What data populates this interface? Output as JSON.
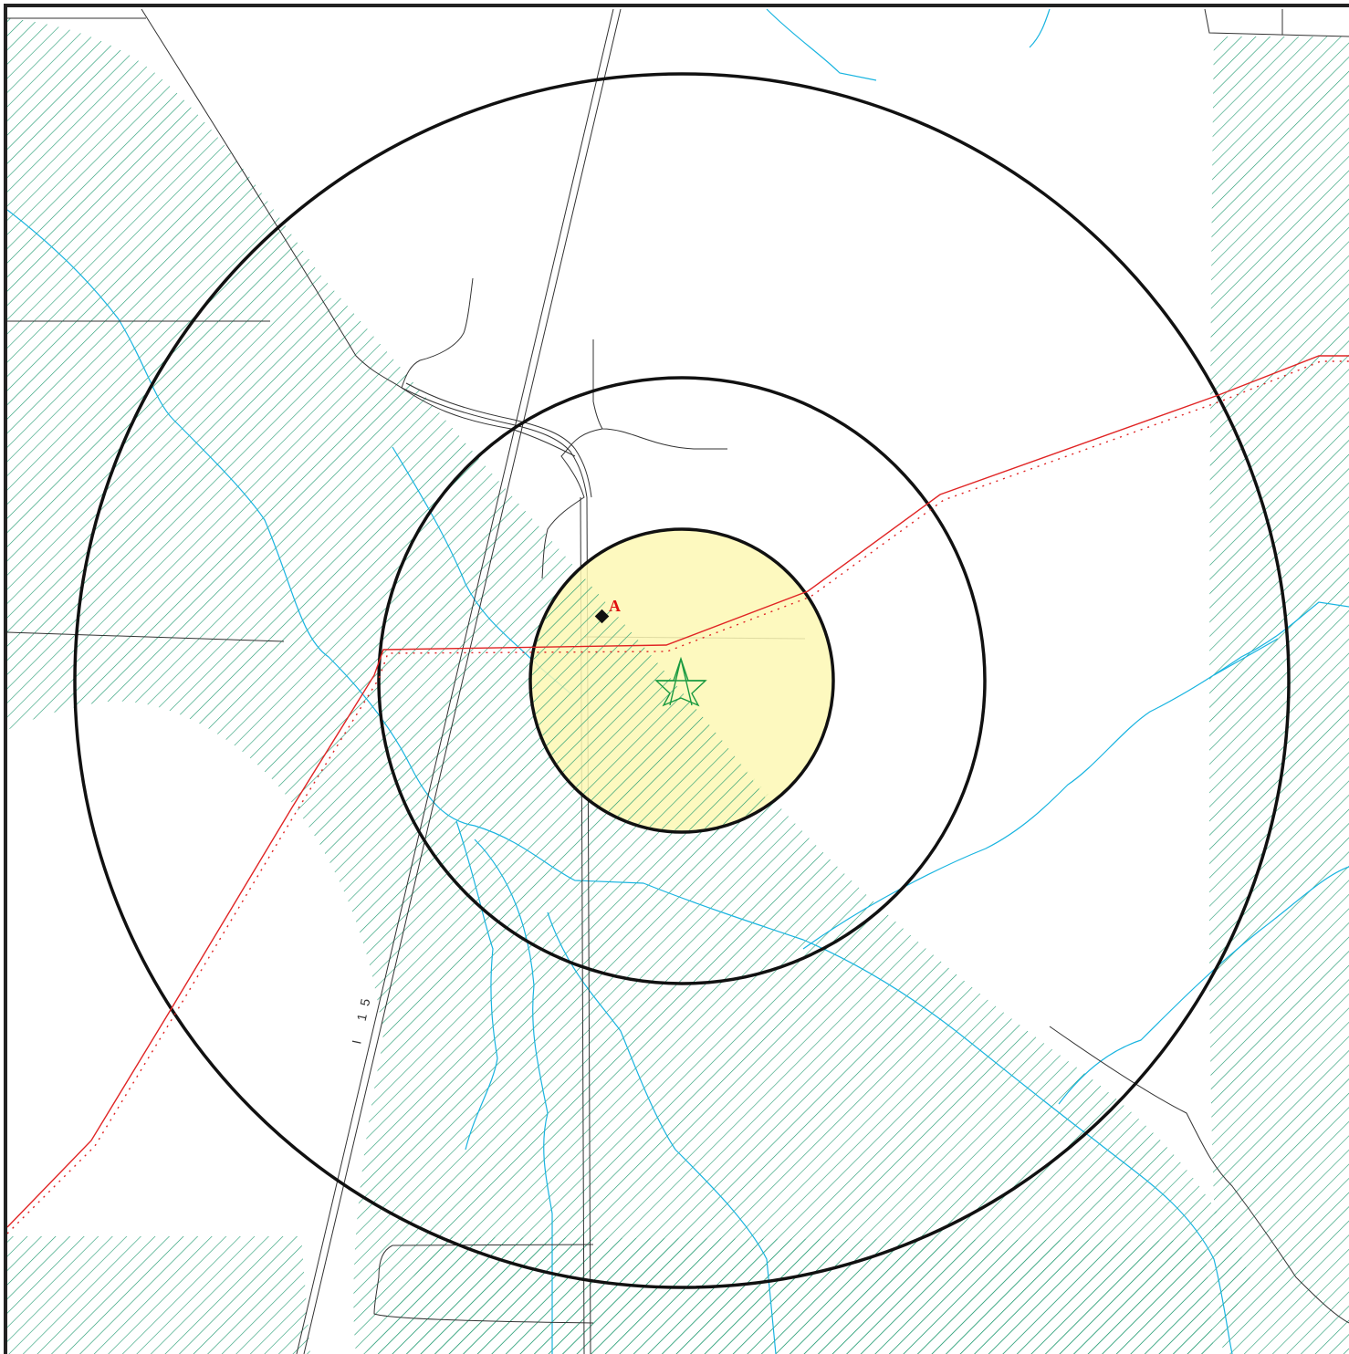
{
  "map": {
    "site_marker": {
      "label": "A"
    },
    "highway_label": {
      "text": "I 15"
    },
    "colors": {
      "frame": "#222222",
      "rings": "#111111",
      "inner_zone_fill": "#fdf8b4",
      "hatch": "#1f9a70",
      "streams": "#18b4e0",
      "roads": "#333333",
      "pipeline": "#e02424",
      "center_star": "#1a9a40",
      "marker_label": "#e01010"
    },
    "legend_symbols": [
      "star-icon",
      "diamond-marker-icon"
    ]
  }
}
